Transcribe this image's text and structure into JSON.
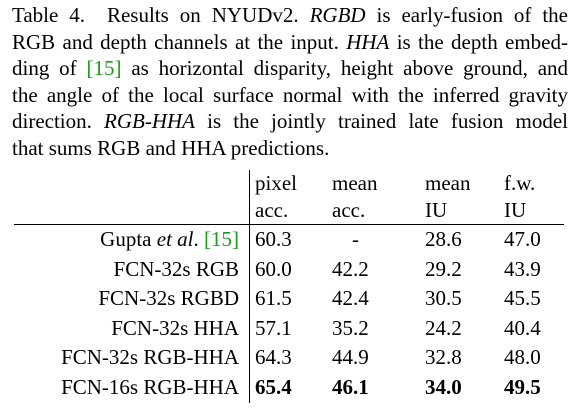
{
  "caption": {
    "label": "Table 4.",
    "title": "Results on NYUDv2.",
    "rgbd_term": "RGBD",
    "rgbd_desc": "is early-fusion of the RGB and depth channels at the input.",
    "hha_term": "HHA",
    "hha_desc_1": "is the depth embedding of",
    "citation": "[15]",
    "hha_desc_2": "as horizontal disparity, height above ground, and the angle of the local surface normal with the inferred gravity direction.",
    "rgbhha_term": "RGB-HHA",
    "rgbhha_desc": "is the jointly trained late fusion model that sums RGB and HHA predictions."
  },
  "table": {
    "headers_top": [
      "pixel",
      "mean",
      "mean",
      "f.w."
    ],
    "headers_bottom": [
      "acc.",
      "acc.",
      "IU",
      "IU"
    ],
    "rows": [
      {
        "method_pre": "Gupta",
        "method_em": "et al",
        "method_post": ".",
        "citation": "[15]",
        "values": [
          "60.3",
          "-",
          "28.6",
          "47.0"
        ],
        "bold": false
      },
      {
        "method": "FCN-32s RGB",
        "values": [
          "60.0",
          "42.2",
          "29.2",
          "43.9"
        ],
        "bold": false
      },
      {
        "method": "FCN-32s RGBD",
        "values": [
          "61.5",
          "42.4",
          "30.5",
          "45.5"
        ],
        "bold": false
      },
      {
        "method": "FCN-32s HHA",
        "values": [
          "57.1",
          "35.2",
          "24.2",
          "40.4"
        ],
        "bold": false
      },
      {
        "method": "FCN-32s RGB-HHA",
        "values": [
          "64.3",
          "44.9",
          "32.8",
          "48.0"
        ],
        "bold": false
      },
      {
        "method": "FCN-16s RGB-HHA",
        "values": [
          "65.4",
          "46.1",
          "34.0",
          "49.5"
        ],
        "bold": true
      }
    ]
  },
  "colors": {
    "citation": "#1a9a1a",
    "text": "#000000"
  }
}
